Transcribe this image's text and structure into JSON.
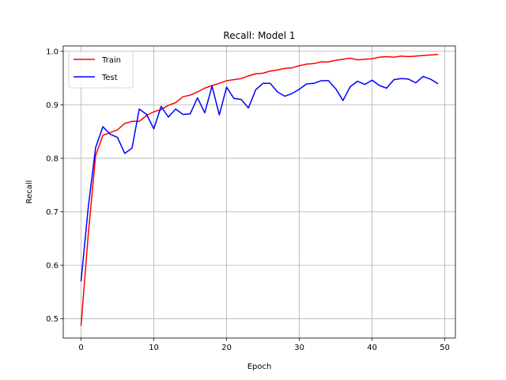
{
  "chart_data": {
    "type": "line",
    "title": "Recall: Model 1",
    "xlabel": "Epoch",
    "ylabel": "Recall",
    "xlim": [
      -2.45,
      51.45
    ],
    "ylim": [
      0.464,
      1.01
    ],
    "xticks": [
      0,
      10,
      20,
      30,
      40,
      50
    ],
    "yticks": [
      0.5,
      0.6,
      0.7,
      0.8,
      0.9,
      1.0
    ],
    "grid": true,
    "legend": "upper-left",
    "x": [
      0,
      1,
      2,
      3,
      4,
      5,
      6,
      7,
      8,
      9,
      10,
      11,
      12,
      13,
      14,
      15,
      16,
      17,
      18,
      19,
      20,
      21,
      22,
      23,
      24,
      25,
      26,
      27,
      28,
      29,
      30,
      31,
      32,
      33,
      34,
      35,
      36,
      37,
      38,
      39,
      40,
      41,
      42,
      43,
      44,
      45,
      46,
      47,
      48,
      49
    ],
    "series": [
      {
        "name": "Train",
        "color": "#ff0000",
        "values": [
          0.488,
          0.66,
          0.805,
          0.843,
          0.848,
          0.853,
          0.865,
          0.869,
          0.869,
          0.88,
          0.887,
          0.891,
          0.899,
          0.904,
          0.915,
          0.918,
          0.924,
          0.931,
          0.936,
          0.94,
          0.945,
          0.947,
          0.949,
          0.954,
          0.958,
          0.959,
          0.963,
          0.965,
          0.968,
          0.969,
          0.973,
          0.976,
          0.977,
          0.98,
          0.98,
          0.983,
          0.985,
          0.987,
          0.984,
          0.985,
          0.986,
          0.989,
          0.99,
          0.989,
          0.991,
          0.99,
          0.991,
          0.992,
          0.993,
          0.994
        ]
      },
      {
        "name": "Test",
        "color": "#0000ff",
        "values": [
          0.571,
          0.71,
          0.82,
          0.859,
          0.845,
          0.839,
          0.809,
          0.819,
          0.892,
          0.882,
          0.855,
          0.897,
          0.877,
          0.892,
          0.882,
          0.883,
          0.913,
          0.885,
          0.935,
          0.881,
          0.933,
          0.912,
          0.91,
          0.894,
          0.928,
          0.94,
          0.94,
          0.924,
          0.916,
          0.921,
          0.929,
          0.939,
          0.94,
          0.945,
          0.945,
          0.93,
          0.908,
          0.934,
          0.944,
          0.938,
          0.946,
          0.936,
          0.931,
          0.947,
          0.949,
          0.948,
          0.941,
          0.953,
          0.948,
          0.94
        ]
      }
    ]
  }
}
